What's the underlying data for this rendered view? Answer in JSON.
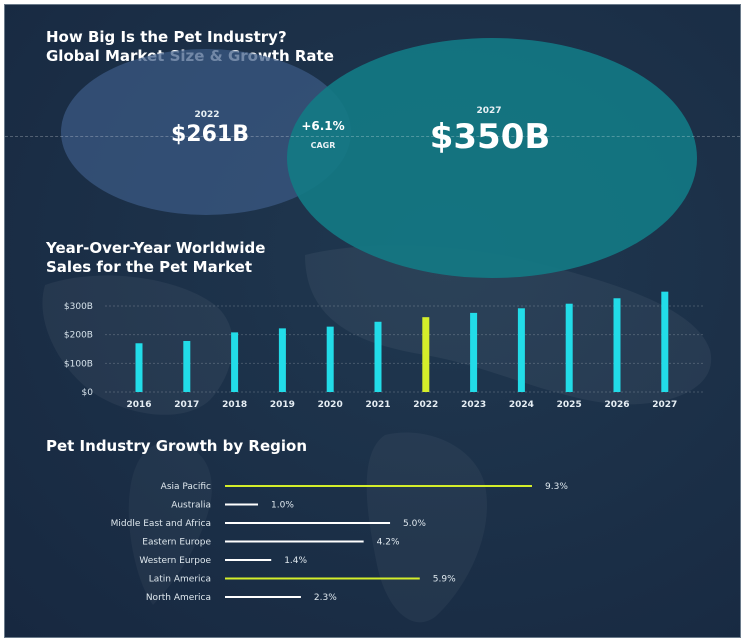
{
  "header": {
    "title_line1": "How Big Is the Pet Industry?",
    "title_line2": "Global Market Size & Growth Rate"
  },
  "market": {
    "year_a": "2022",
    "value_a": "$261B",
    "growth": "+6.1%",
    "growth_label": "CAGR",
    "year_b": "2027",
    "value_b": "$350B"
  },
  "colors": {
    "bar": "#22dce8",
    "highlight": "#d4ee2a",
    "line_white": "#ffffff",
    "circle_left": "#3b5a85",
    "circle_right": "#137a85"
  },
  "chart_data": [
    {
      "type": "bar",
      "title": "Year-Over-Year Worldwide Sales for the Pet Market",
      "title_line1": "Year-Over-Year Worldwide",
      "title_line2": "Sales for the Pet Market",
      "categories": [
        "2016",
        "2017",
        "2018",
        "2019",
        "2020",
        "2021",
        "2022",
        "2023",
        "2024",
        "2025",
        "2026",
        "2027"
      ],
      "values": [
        170,
        178,
        208,
        222,
        228,
        245,
        261,
        276,
        292,
        308,
        327,
        350
      ],
      "highlight_category": "2022",
      "yticks": [
        0,
        100,
        200,
        300
      ],
      "ytick_labels": [
        "$0",
        "$100B",
        "$200B",
        "$300B"
      ],
      "ylim": [
        0,
        350
      ],
      "grid": true
    },
    {
      "type": "bar",
      "orientation": "horizontal",
      "title": "Pet Industry Growth by Region",
      "categories": [
        "Asia Pacific",
        "Australia",
        "Middle East and Africa",
        "Eastern Europe",
        "Western Eurpoe",
        "Latin America",
        "North America"
      ],
      "values": [
        9.3,
        1.0,
        5.0,
        4.2,
        1.4,
        5.9,
        2.3
      ],
      "value_labels": [
        "9.3%",
        "1.0%",
        "5.0%",
        "4.2%",
        "1.4%",
        "5.9%",
        "2.3%"
      ],
      "highlight_categories": [
        "Asia Pacific",
        "Latin America"
      ],
      "xlim": [
        0,
        9.3
      ]
    }
  ]
}
